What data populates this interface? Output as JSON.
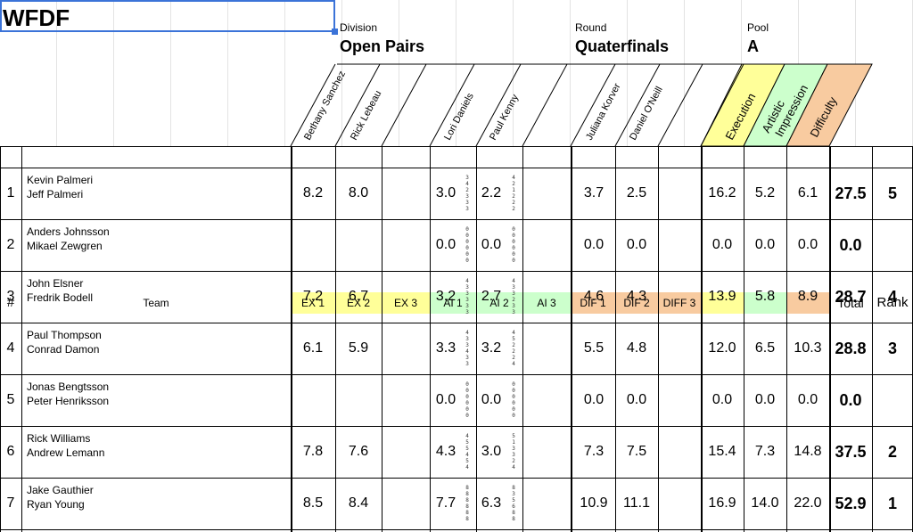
{
  "sheet": {
    "title": "WFDF",
    "division_label": "Division",
    "division_value": "Open Pairs",
    "round_label": "Round",
    "round_value": "Quaterfinals",
    "pool_label": "Pool",
    "pool_value": "A"
  },
  "judges": [
    "Bethany Sanchez",
    "Rick Lebeau",
    "Lori Daniels",
    "Paul Kenny",
    "Juliana Korver",
    "Daniel O'Neill"
  ],
  "category_headers": [
    "Execution",
    "Artistic Impression",
    "Difficulty"
  ],
  "colors": {
    "ex": "#ffff99",
    "ai": "#ccffcc",
    "dif": "#f8cba0",
    "selection": "#3b73d8"
  },
  "columns": {
    "num": "#",
    "team": "Team",
    "ex1": "EX 1",
    "ex2": "EX 2",
    "ex3": "EX 3",
    "ai1": "AI 1",
    "ai2": "AI 2",
    "ai3": "AI 3",
    "dif1": "DIF 1",
    "dif2": "DIF 2",
    "dif3": "DIFF 3",
    "total": "Total",
    "rank": "Rank"
  },
  "rows": [
    {
      "num": "1",
      "p1": "Kevin Palmeri",
      "p2": "Jeff Palmeri",
      "ex1": "8.2",
      "ex2": "8.0",
      "ai1": "3.0",
      "ai1d": "3 4 2 3 3 3",
      "ai2": "2.2",
      "ai2d": "4 2 1 2 2 2",
      "dif1": "3.7",
      "dif2": "2.5",
      "exec": "16.2",
      "art": "5.2",
      "diff": "6.1",
      "total": "27.5",
      "rank": "5"
    },
    {
      "num": "2",
      "p1": "Anders Johnsson",
      "p2": "Mikael Zewgren",
      "ex1": "",
      "ex2": "",
      "ai1": "0.0",
      "ai1d": "0 0 0 0 0 0",
      "ai2": "0.0",
      "ai2d": "0 0 0 0 0 0",
      "dif1": "0.0",
      "dif2": "0.0",
      "exec": "0.0",
      "art": "0.0",
      "diff": "0.0",
      "total": "0.0",
      "rank": ""
    },
    {
      "num": "3",
      "p1": "John Elsner",
      "p2": "Fredrik Bodell",
      "ex1": "7.2",
      "ex2": "6.7",
      "ai1": "3.2",
      "ai1d": "4 3 3 3 3 3",
      "ai2": "2.7",
      "ai2d": "4 3 3 2 3 3",
      "dif1": "4.6",
      "dif2": "4.3",
      "exec": "13.9",
      "art": "5.8",
      "diff": "8.9",
      "total": "28.7",
      "rank": "4"
    },
    {
      "num": "4",
      "p1": "Paul Thompson",
      "p2": "Conrad Damon",
      "ex1": "6.1",
      "ex2": "5.9",
      "ai1": "3.3",
      "ai1d": "4 3 3 4 3 3",
      "ai2": "3.2",
      "ai2d": "4 5 2 2 2 4",
      "dif1": "5.5",
      "dif2": "4.8",
      "exec": "12.0",
      "art": "6.5",
      "diff": "10.3",
      "total": "28.8",
      "rank": "3"
    },
    {
      "num": "5",
      "p1": "Jonas Bengtsson",
      "p2": "Peter Henriksson",
      "ex1": "",
      "ex2": "",
      "ai1": "0.0",
      "ai1d": "0 0 0 0 0 0",
      "ai2": "0.0",
      "ai2d": "0 0 0 0 0 0",
      "dif1": "0.0",
      "dif2": "0.0",
      "exec": "0.0",
      "art": "0.0",
      "diff": "0.0",
      "total": "0.0",
      "rank": ""
    },
    {
      "num": "6",
      "p1": "Rick Williams",
      "p2": "Andrew Lemann",
      "ex1": "7.8",
      "ex2": "7.6",
      "ai1": "4.3",
      "ai1d": "4 5 5 4 5 4",
      "ai2": "3.0",
      "ai2d": "5 1 3 3 2 4",
      "dif1": "7.3",
      "dif2": "7.5",
      "exec": "15.4",
      "art": "7.3",
      "diff": "14.8",
      "total": "37.5",
      "rank": "2"
    },
    {
      "num": "7",
      "p1": "Jake Gauthier",
      "p2": "Ryan Young",
      "ex1": "8.5",
      "ex2": "8.4",
      "ai1": "7.7",
      "ai1d": "8 8 8 8 8 8",
      "ai2": "6.3",
      "ai2d": "8 3 5 6 8 8",
      "dif1": "10.9",
      "dif2": "11.1",
      "exec": "16.9",
      "art": "14.0",
      "diff": "22.0",
      "total": "52.9",
      "rank": "1"
    }
  ]
}
